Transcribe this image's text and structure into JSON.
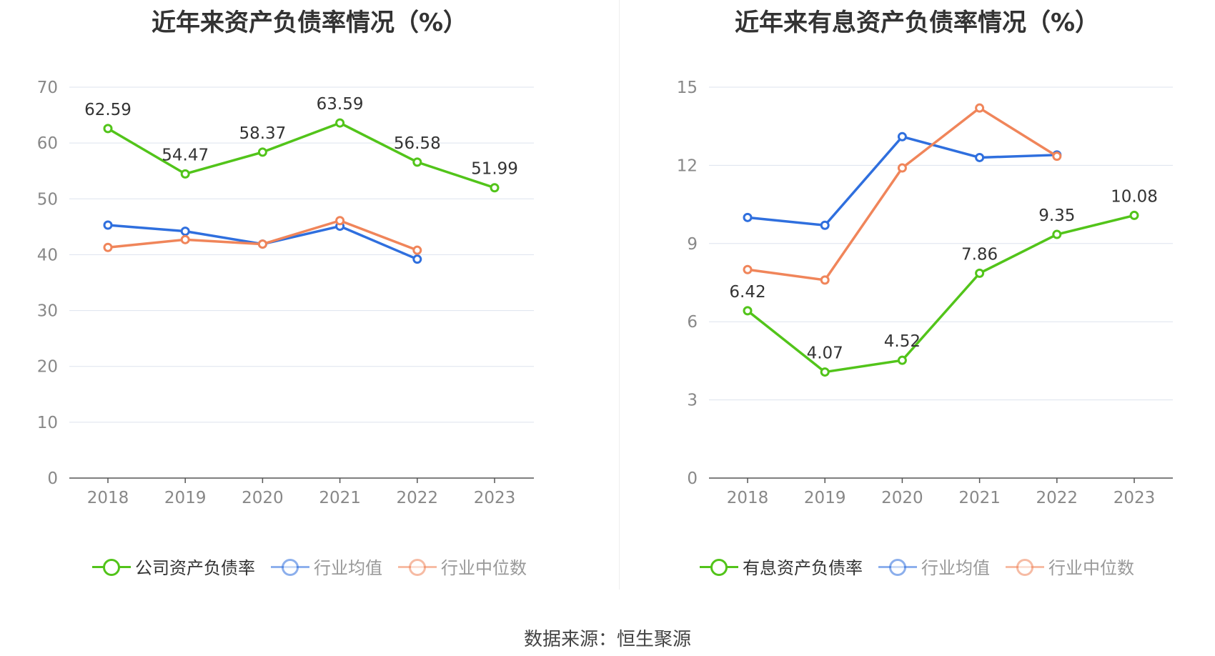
{
  "source": "数据来源：恒生聚源",
  "chart_data": [
    {
      "type": "line",
      "title": "近年来资产负债率情况（%）",
      "x": [
        "2018",
        "2019",
        "2020",
        "2021",
        "2022",
        "2023"
      ],
      "ylim": [
        0,
        70
      ],
      "yticks": [
        0,
        10,
        20,
        30,
        40,
        50,
        60,
        70
      ],
      "grid": true,
      "legend_position": "bottom",
      "series": [
        {
          "name": "公司资产负债率",
          "color": "#52c41a",
          "muted": false,
          "labels": true,
          "values": [
            62.59,
            54.47,
            58.37,
            63.59,
            56.58,
            51.99
          ]
        },
        {
          "name": "行业均值",
          "color": "#2f6fde",
          "muted": true,
          "labels": false,
          "values": [
            45.3,
            44.2,
            41.9,
            45.1,
            39.2,
            null
          ]
        },
        {
          "name": "行业中位数",
          "color": "#f0855a",
          "muted": true,
          "labels": false,
          "values": [
            41.3,
            42.7,
            41.9,
            46.1,
            40.8,
            null
          ]
        }
      ]
    },
    {
      "type": "line",
      "title": "近年来有息资产负债率情况（%）",
      "x": [
        "2018",
        "2019",
        "2020",
        "2021",
        "2022",
        "2023"
      ],
      "ylim": [
        0,
        15
      ],
      "yticks": [
        0,
        3,
        6,
        9,
        12,
        15
      ],
      "grid": true,
      "legend_position": "bottom",
      "series": [
        {
          "name": "有息资产负债率",
          "color": "#52c41a",
          "muted": false,
          "labels": true,
          "values": [
            6.42,
            4.07,
            4.52,
            7.86,
            9.35,
            10.08
          ]
        },
        {
          "name": "行业均值",
          "color": "#2f6fde",
          "muted": true,
          "labels": false,
          "values": [
            10.0,
            9.7,
            13.1,
            12.3,
            12.4,
            null
          ]
        },
        {
          "name": "行业中位数",
          "color": "#f0855a",
          "muted": true,
          "labels": false,
          "values": [
            8.0,
            7.6,
            11.9,
            14.2,
            12.35,
            null
          ]
        }
      ]
    }
  ]
}
